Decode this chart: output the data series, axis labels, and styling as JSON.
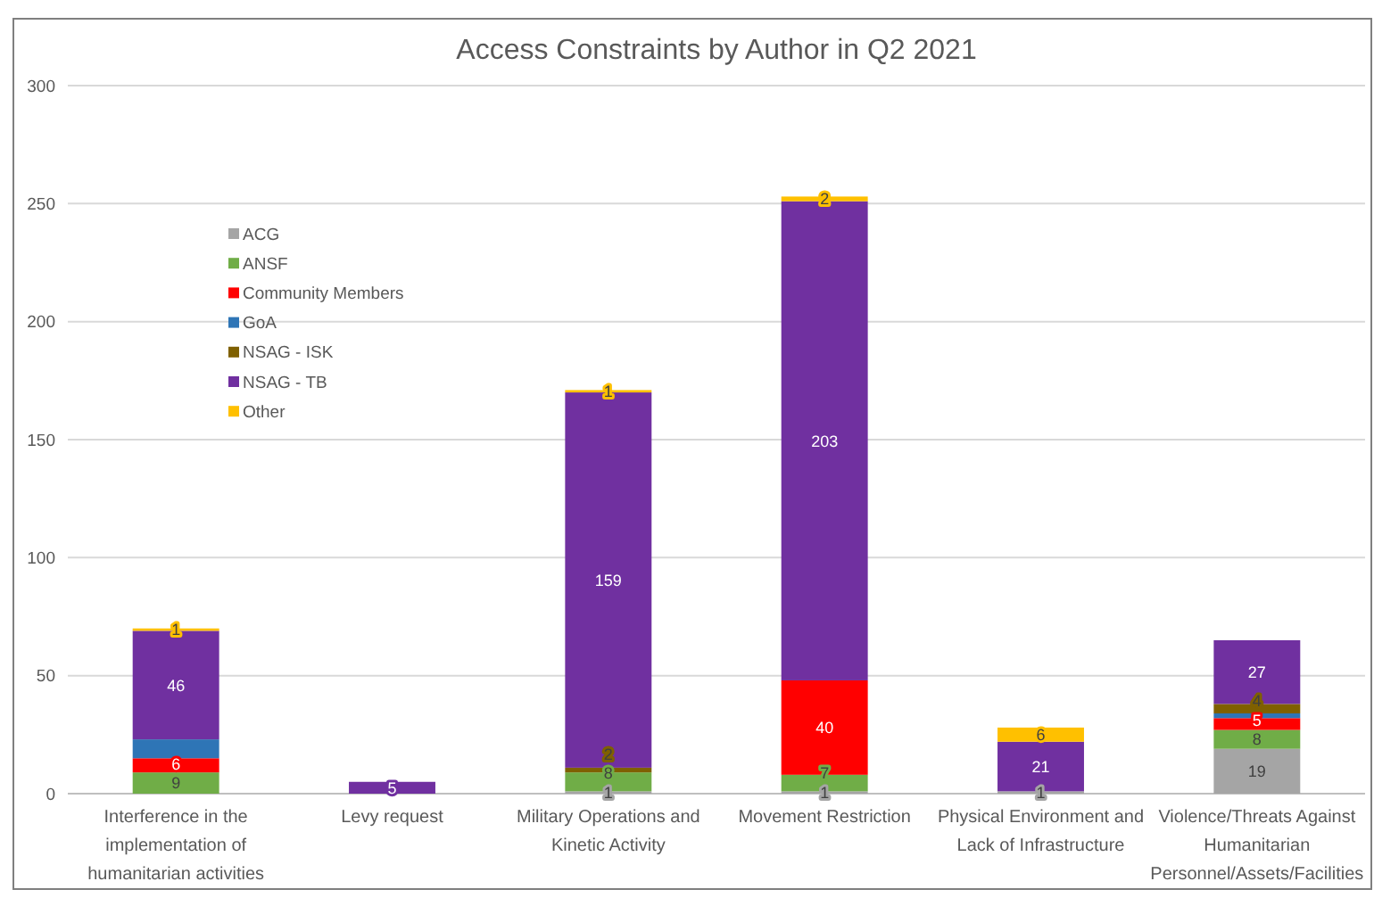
{
  "chart_data": {
    "type": "bar",
    "title": "Access Constraints by Author in Q2 2021",
    "stacked": true,
    "grid": "y",
    "legend": "top left",
    "categories": [
      "Interference in the implementation of humanitarian activities",
      "Levy request",
      "Military Operations and Kinetic Activity",
      "Movement Restriction",
      "Physical Environment and Lack of Infrastructure",
      "Violence/Threats Against Humanitarian Personnel/Assets/Facilities"
    ],
    "ylim": [
      0,
      300
    ],
    "yticks": [
      0,
      50,
      100,
      150,
      200,
      250,
      300
    ],
    "series": [
      {
        "name": "ACG",
        "color": "#a5a5a5",
        "values": [
          null,
          null,
          1,
          1,
          1,
          19
        ],
        "value_labels": [
          null,
          null,
          "1",
          "1",
          "1",
          "19"
        ]
      },
      {
        "name": "ANSF",
        "color": "#70ad47",
        "values": [
          9,
          null,
          8,
          7,
          null,
          8
        ],
        "value_labels": [
          "9",
          null,
          "8",
          "7",
          null,
          "8"
        ]
      },
      {
        "name": "Community Members",
        "color": "#ff0000",
        "values": [
          6,
          null,
          null,
          40,
          null,
          5
        ],
        "value_labels": [
          "6",
          null,
          null,
          "40",
          null,
          "5"
        ]
      },
      {
        "name": "GoA",
        "color": "#2e75b6",
        "values": [
          8,
          null,
          null,
          null,
          null,
          2
        ],
        "value_labels": [
          null,
          null,
          null,
          null,
          null,
          null
        ]
      },
      {
        "name": "NSAG - ISK",
        "color": "#7f6000",
        "values": [
          null,
          null,
          2,
          null,
          null,
          4
        ],
        "value_labels": [
          null,
          null,
          "2",
          null,
          null,
          "4"
        ]
      },
      {
        "name": "NSAG - TB",
        "color": "#7030a0",
        "values": [
          46,
          5,
          159,
          203,
          21,
          27
        ],
        "value_labels": [
          "46",
          "5",
          "159",
          "203",
          "21",
          "27"
        ]
      },
      {
        "name": "Other",
        "color": "#ffc000",
        "values": [
          1,
          null,
          1,
          2,
          6,
          null
        ],
        "value_labels": [
          "1",
          null,
          "1",
          "2",
          "6",
          null
        ]
      }
    ]
  }
}
